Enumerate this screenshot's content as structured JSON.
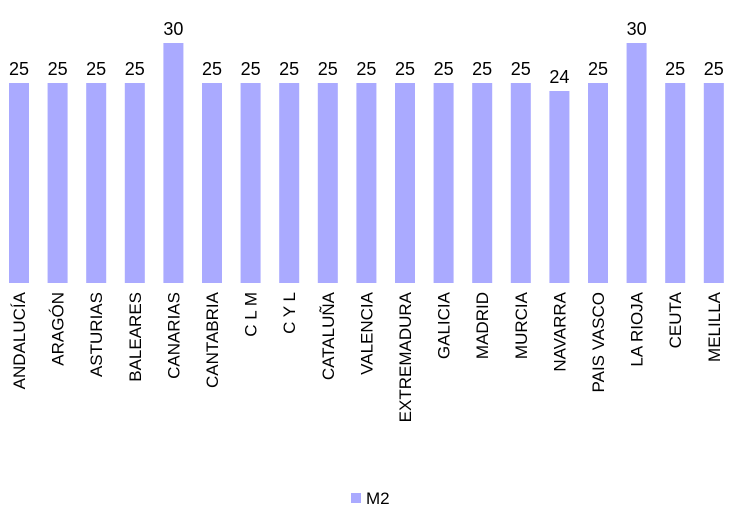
{
  "chart_data": {
    "type": "bar",
    "categories": [
      "ANDALUCÍA",
      "ARAGÓN",
      "ASTURIAS",
      "BALEARES",
      "CANARIAS",
      "CANTABRIA",
      "C L M",
      "C Y L",
      "CATALUÑA",
      "VALENCIA",
      "EXTREMADURA",
      "GALICIA",
      "MADRID",
      "MURCIA",
      "NAVARRA",
      "PAIS VASCO",
      "LA RIOJA",
      "CEUTA",
      "MELILLA"
    ],
    "series": [
      {
        "name": "M2",
        "values": [
          25,
          25,
          25,
          25,
          30,
          25,
          25,
          25,
          25,
          25,
          25,
          25,
          25,
          25,
          24,
          25,
          30,
          25,
          25
        ],
        "color": "#aaaaff"
      }
    ],
    "title": "",
    "xlabel": "",
    "ylabel": "",
    "ylim": [
      0,
      30
    ],
    "grid": false,
    "legend_position": "bottom-center",
    "data_labels": true,
    "x_tick_rotation": "vertical"
  }
}
